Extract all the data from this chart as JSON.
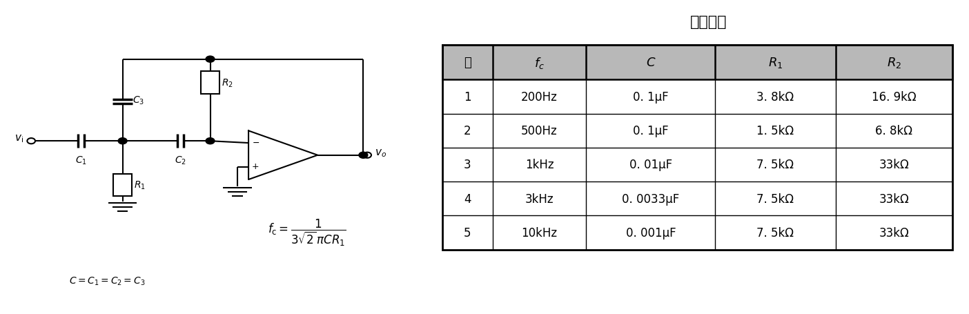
{
  "title": "设计値例",
  "rows": [
    [
      "1",
      "200Hz",
      "0. 1μF",
      "3. 8kΩ",
      "16. 9kΩ"
    ],
    [
      "2",
      "500Hz",
      "0. 1μF",
      "1. 5kΩ",
      "6. 8kΩ"
    ],
    [
      "3",
      "1kHz",
      "0. 01μF",
      "7. 5kΩ",
      "33kΩ"
    ],
    [
      "4",
      "3kHz",
      "0. 0033μF",
      "7. 5kΩ",
      "33kΩ"
    ],
    [
      "5",
      "10kHz",
      "0. 001μF",
      "7. 5kΩ",
      "33kΩ"
    ]
  ],
  "header_bg": "#b8b8b8",
  "bg_color": "#ffffff"
}
